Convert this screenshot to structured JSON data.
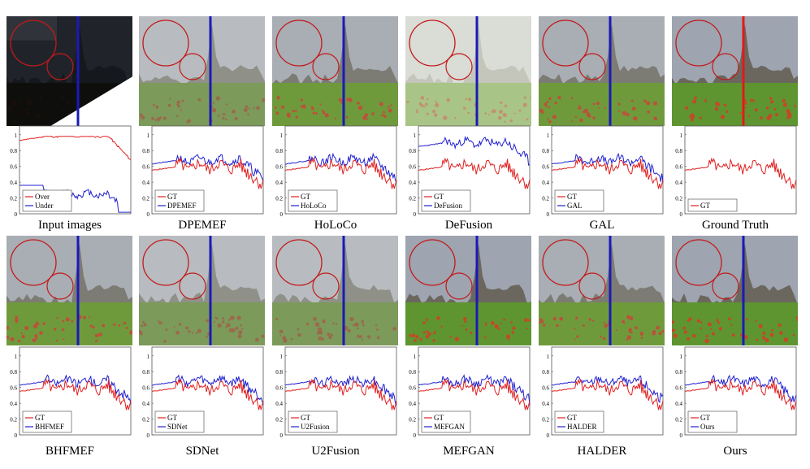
{
  "figure": {
    "rows": [
      {
        "panels": [
          {
            "caption": "Input images",
            "legend": [
              "Over",
              "Under"
            ],
            "legend_colors": [
              "#e02020",
              "#2020d0"
            ],
            "style": "input",
            "line_color": "#1a1ab8"
          },
          {
            "caption": "DPEMEF",
            "legend": [
              "GT",
              "DPEMEF"
            ],
            "legend_colors": [
              "#e02020",
              "#2020d0"
            ],
            "style": "hazy",
            "line_color": "#1a1ab8"
          },
          {
            "caption": "HoLoCo",
            "legend": [
              "GT",
              "HoLoCo"
            ],
            "legend_colors": [
              "#e02020",
              "#2020d0"
            ],
            "style": "normal",
            "line_color": "#1a1ab8"
          },
          {
            "caption": "DeFusion",
            "legend": [
              "GT",
              "DeFusion"
            ],
            "legend_colors": [
              "#e02020",
              "#2020d0"
            ],
            "style": "washed",
            "line_color": "#1a1ab8"
          },
          {
            "caption": "GAL",
            "legend": [
              "GT",
              "GAL"
            ],
            "legend_colors": [
              "#e02020",
              "#2020d0"
            ],
            "style": "normal",
            "line_color": "#1a1ab8"
          },
          {
            "caption": "Ground Truth",
            "legend": [
              "GT"
            ],
            "legend_colors": [
              "#e02020"
            ],
            "style": "vivid",
            "line_color": "#e01a1a"
          }
        ]
      },
      {
        "panels": [
          {
            "caption": "BHFMEF",
            "legend": [
              "GT",
              "BHFMEF"
            ],
            "legend_colors": [
              "#e02020",
              "#2020d0"
            ],
            "style": "normal",
            "line_color": "#1a1ab8"
          },
          {
            "caption": "SDNet",
            "legend": [
              "GT",
              "SDNet"
            ],
            "legend_colors": [
              "#e02020",
              "#2020d0"
            ],
            "style": "hazy",
            "line_color": "#1a1ab8"
          },
          {
            "caption": "U2Fusion",
            "legend": [
              "GT",
              "U2Fusion"
            ],
            "legend_colors": [
              "#e02020",
              "#2020d0"
            ],
            "style": "hazy",
            "line_color": "#1a1ab8"
          },
          {
            "caption": "MEFGAN",
            "legend": [
              "GT",
              "MEFGAN"
            ],
            "legend_colors": [
              "#e02020",
              "#2020d0"
            ],
            "style": "vivid",
            "line_color": "#1a1ab8"
          },
          {
            "caption": "HALDER",
            "legend": [
              "GT",
              "HALDER"
            ],
            "legend_colors": [
              "#e02020",
              "#2020d0"
            ],
            "style": "normal",
            "line_color": "#1a1ab8"
          },
          {
            "caption": "Ours",
            "legend": [
              "GT",
              "Ours"
            ],
            "legend_colors": [
              "#e02020",
              "#2020d0"
            ],
            "style": "vivid",
            "line_color": "#1a1ab8"
          }
        ]
      }
    ],
    "y_ticks": [
      "1",
      "0.8",
      "0.6",
      "0.4",
      "0.2",
      "0"
    ]
  }
}
